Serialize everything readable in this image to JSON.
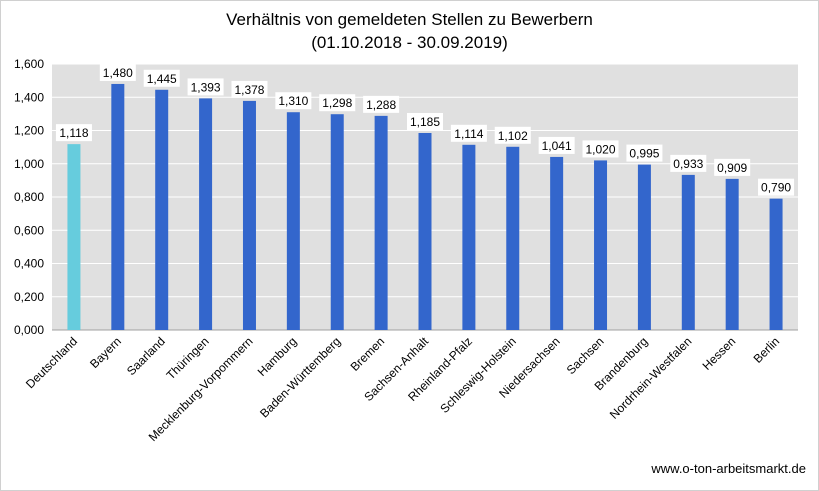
{
  "chart_data": {
    "type": "bar",
    "title": "Verhältnis von gemeldeten Stellen zu Bewerbern",
    "subtitle": "(01.10.2018 - 30.09.2019)",
    "xlabel": "",
    "ylabel": "",
    "ylim": [
      0,
      1.6
    ],
    "yticks": [
      "0,000",
      "0,200",
      "0,400",
      "0,600",
      "0,800",
      "1,000",
      "1,200",
      "1,400",
      "1,600"
    ],
    "ytick_values": [
      0,
      0.2,
      0.4,
      0.6,
      0.8,
      1.0,
      1.2,
      1.4,
      1.6
    ],
    "grid": true,
    "legend": "none",
    "categories": [
      "Deutschland",
      "Bayern",
      "Saarland",
      "Thüringen",
      "Mecklenburg-Vorpommern",
      "Hamburg",
      "Baden-Württemberg",
      "Bremen",
      "Sachsen-Anhalt",
      "Rheinland-Pfalz",
      "Schleswig-Holstein",
      "Niedersachsen",
      "Sachsen",
      "Brandenburg",
      "Nordrhein-Westfalen",
      "Hessen",
      "Berlin"
    ],
    "values": [
      1.118,
      1.48,
      1.445,
      1.393,
      1.378,
      1.31,
      1.298,
      1.288,
      1.185,
      1.114,
      1.102,
      1.041,
      1.02,
      0.995,
      0.933,
      0.909,
      0.79
    ],
    "value_labels": [
      "1,118",
      "1,480",
      "1,445",
      "1,393",
      "1,378",
      "1,310",
      "1,298",
      "1,288",
      "1,185",
      "1,114",
      "1,102",
      "1,041",
      "1,020",
      "0,995",
      "0,933",
      "0,909",
      "0,790"
    ],
    "colors": {
      "highlight": "#66CCDD",
      "bar": "#3366CC",
      "plot_background": "#E0E0E0",
      "gridline": "#FFFFFF"
    }
  },
  "footer": {
    "source": "www.o-ton-arbeitsmarkt.de"
  }
}
